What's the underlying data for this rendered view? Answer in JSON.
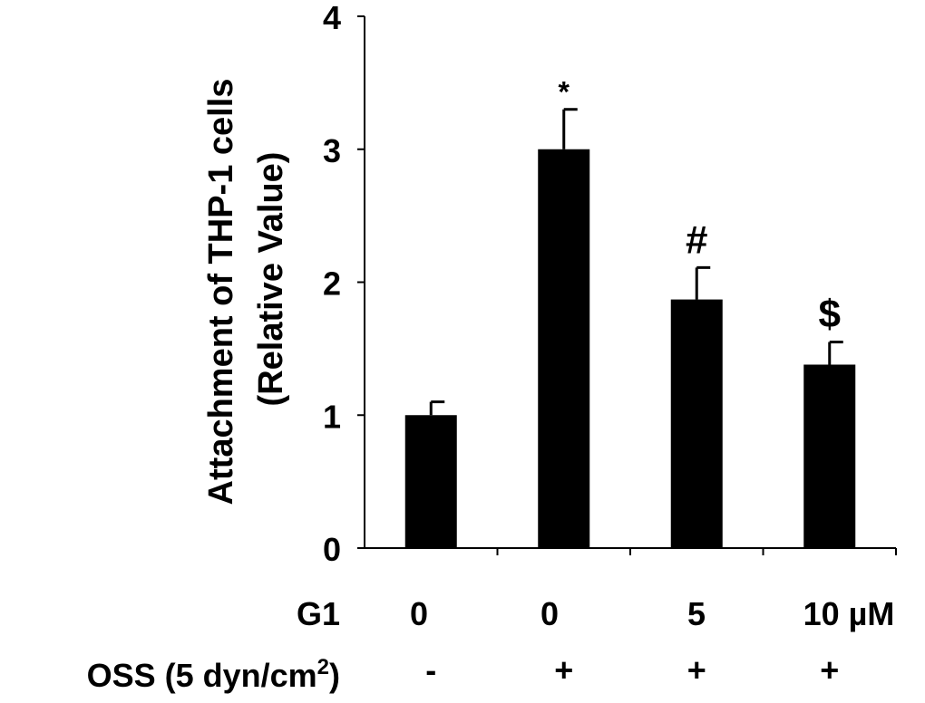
{
  "chart_data": {
    "type": "bar",
    "ylabel_line1": "Attachment of THP-1 cells",
    "ylabel_line2": "(Relative Value)",
    "ylim": [
      0,
      4
    ],
    "yticks": [
      "0",
      "1",
      "2",
      "3",
      "4"
    ],
    "categories": [
      "0",
      "0",
      "5",
      "10 µM"
    ],
    "values": [
      1.0,
      3.0,
      1.87,
      1.38
    ],
    "errors": [
      0.1,
      0.3,
      0.24,
      0.17
    ],
    "annotations": [
      "",
      "*",
      "#",
      "$"
    ],
    "row_labels": {
      "g1": "G1",
      "oss_prefix": "OSS (5 dyn/cm",
      "oss_sup": "2",
      "oss_suffix": ")"
    },
    "oss_values": [
      "-",
      "+",
      "+",
      "+"
    ],
    "bar_color": "#000000",
    "grid": false
  }
}
